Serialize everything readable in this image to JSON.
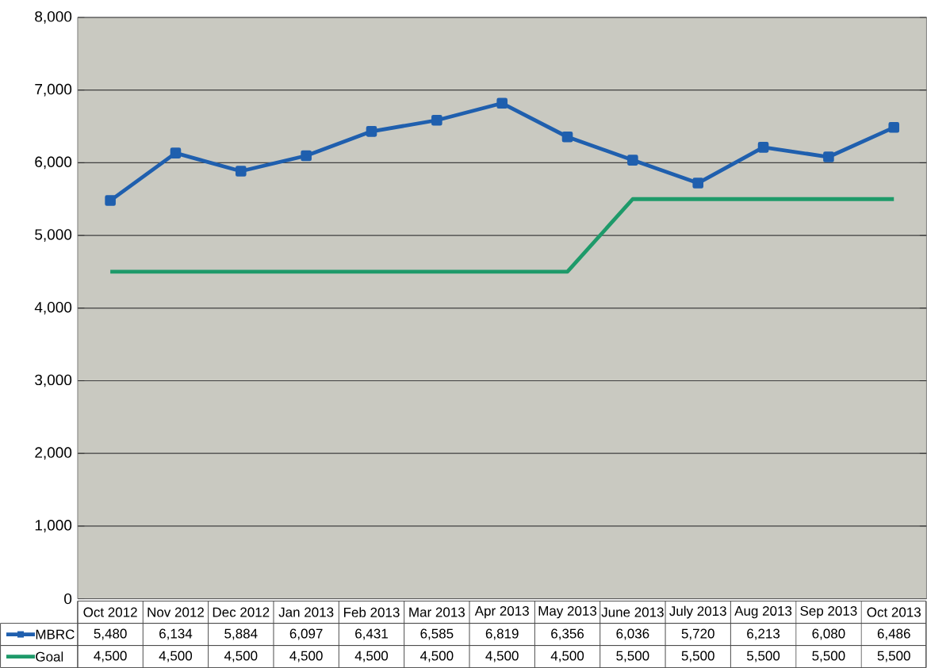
{
  "chart_data": {
    "type": "line",
    "categories": [
      "Oct 2012",
      "Nov 2012",
      "Dec 2012",
      "Jan 2013",
      "Feb 2013",
      "Mar 2013",
      "Apr 2013",
      "May 2013",
      "June 2013",
      "July 2013",
      "Aug 2013",
      "Sep 2013",
      "Oct 2013"
    ],
    "series": [
      {
        "name": "MBRC",
        "color": "#1f5fae",
        "marker": "square",
        "values": [
          5480,
          6134,
          5884,
          6097,
          6431,
          6585,
          6819,
          6356,
          6036,
          5720,
          6213,
          6080,
          6486
        ],
        "value_labels": [
          "5,480",
          "6,134",
          "5,884",
          "6,097",
          "6,431",
          "6,585",
          "6,819",
          "6,356",
          "6,036",
          "5,720",
          "6,213",
          "6,080",
          "6,486"
        ]
      },
      {
        "name": "Goal",
        "color": "#1e9a6a",
        "marker": "none",
        "values": [
          4500,
          4500,
          4500,
          4500,
          4500,
          4500,
          4500,
          4500,
          5500,
          5500,
          5500,
          5500,
          5500
        ],
        "value_labels": [
          "4,500",
          "4,500",
          "4,500",
          "4,500",
          "4,500",
          "4,500",
          "4,500",
          "4,500",
          "5,500",
          "5,500",
          "5,500",
          "5,500",
          "5,500"
        ]
      }
    ],
    "ylim": [
      0,
      8000
    ],
    "yticks": [
      {
        "value": 0,
        "label": "0"
      },
      {
        "value": 1000,
        "label": "1,000"
      },
      {
        "value": 2000,
        "label": "2,000"
      },
      {
        "value": 3000,
        "label": "3,000"
      },
      {
        "value": 4000,
        "label": "4,000"
      },
      {
        "value": 5000,
        "label": "5,000"
      },
      {
        "value": 6000,
        "label": "6,000"
      },
      {
        "value": 7000,
        "label": "7,000"
      },
      {
        "value": 8000,
        "label": "8,000"
      }
    ],
    "grid": "y",
    "legend": "bottom left",
    "line_style": "solid"
  }
}
